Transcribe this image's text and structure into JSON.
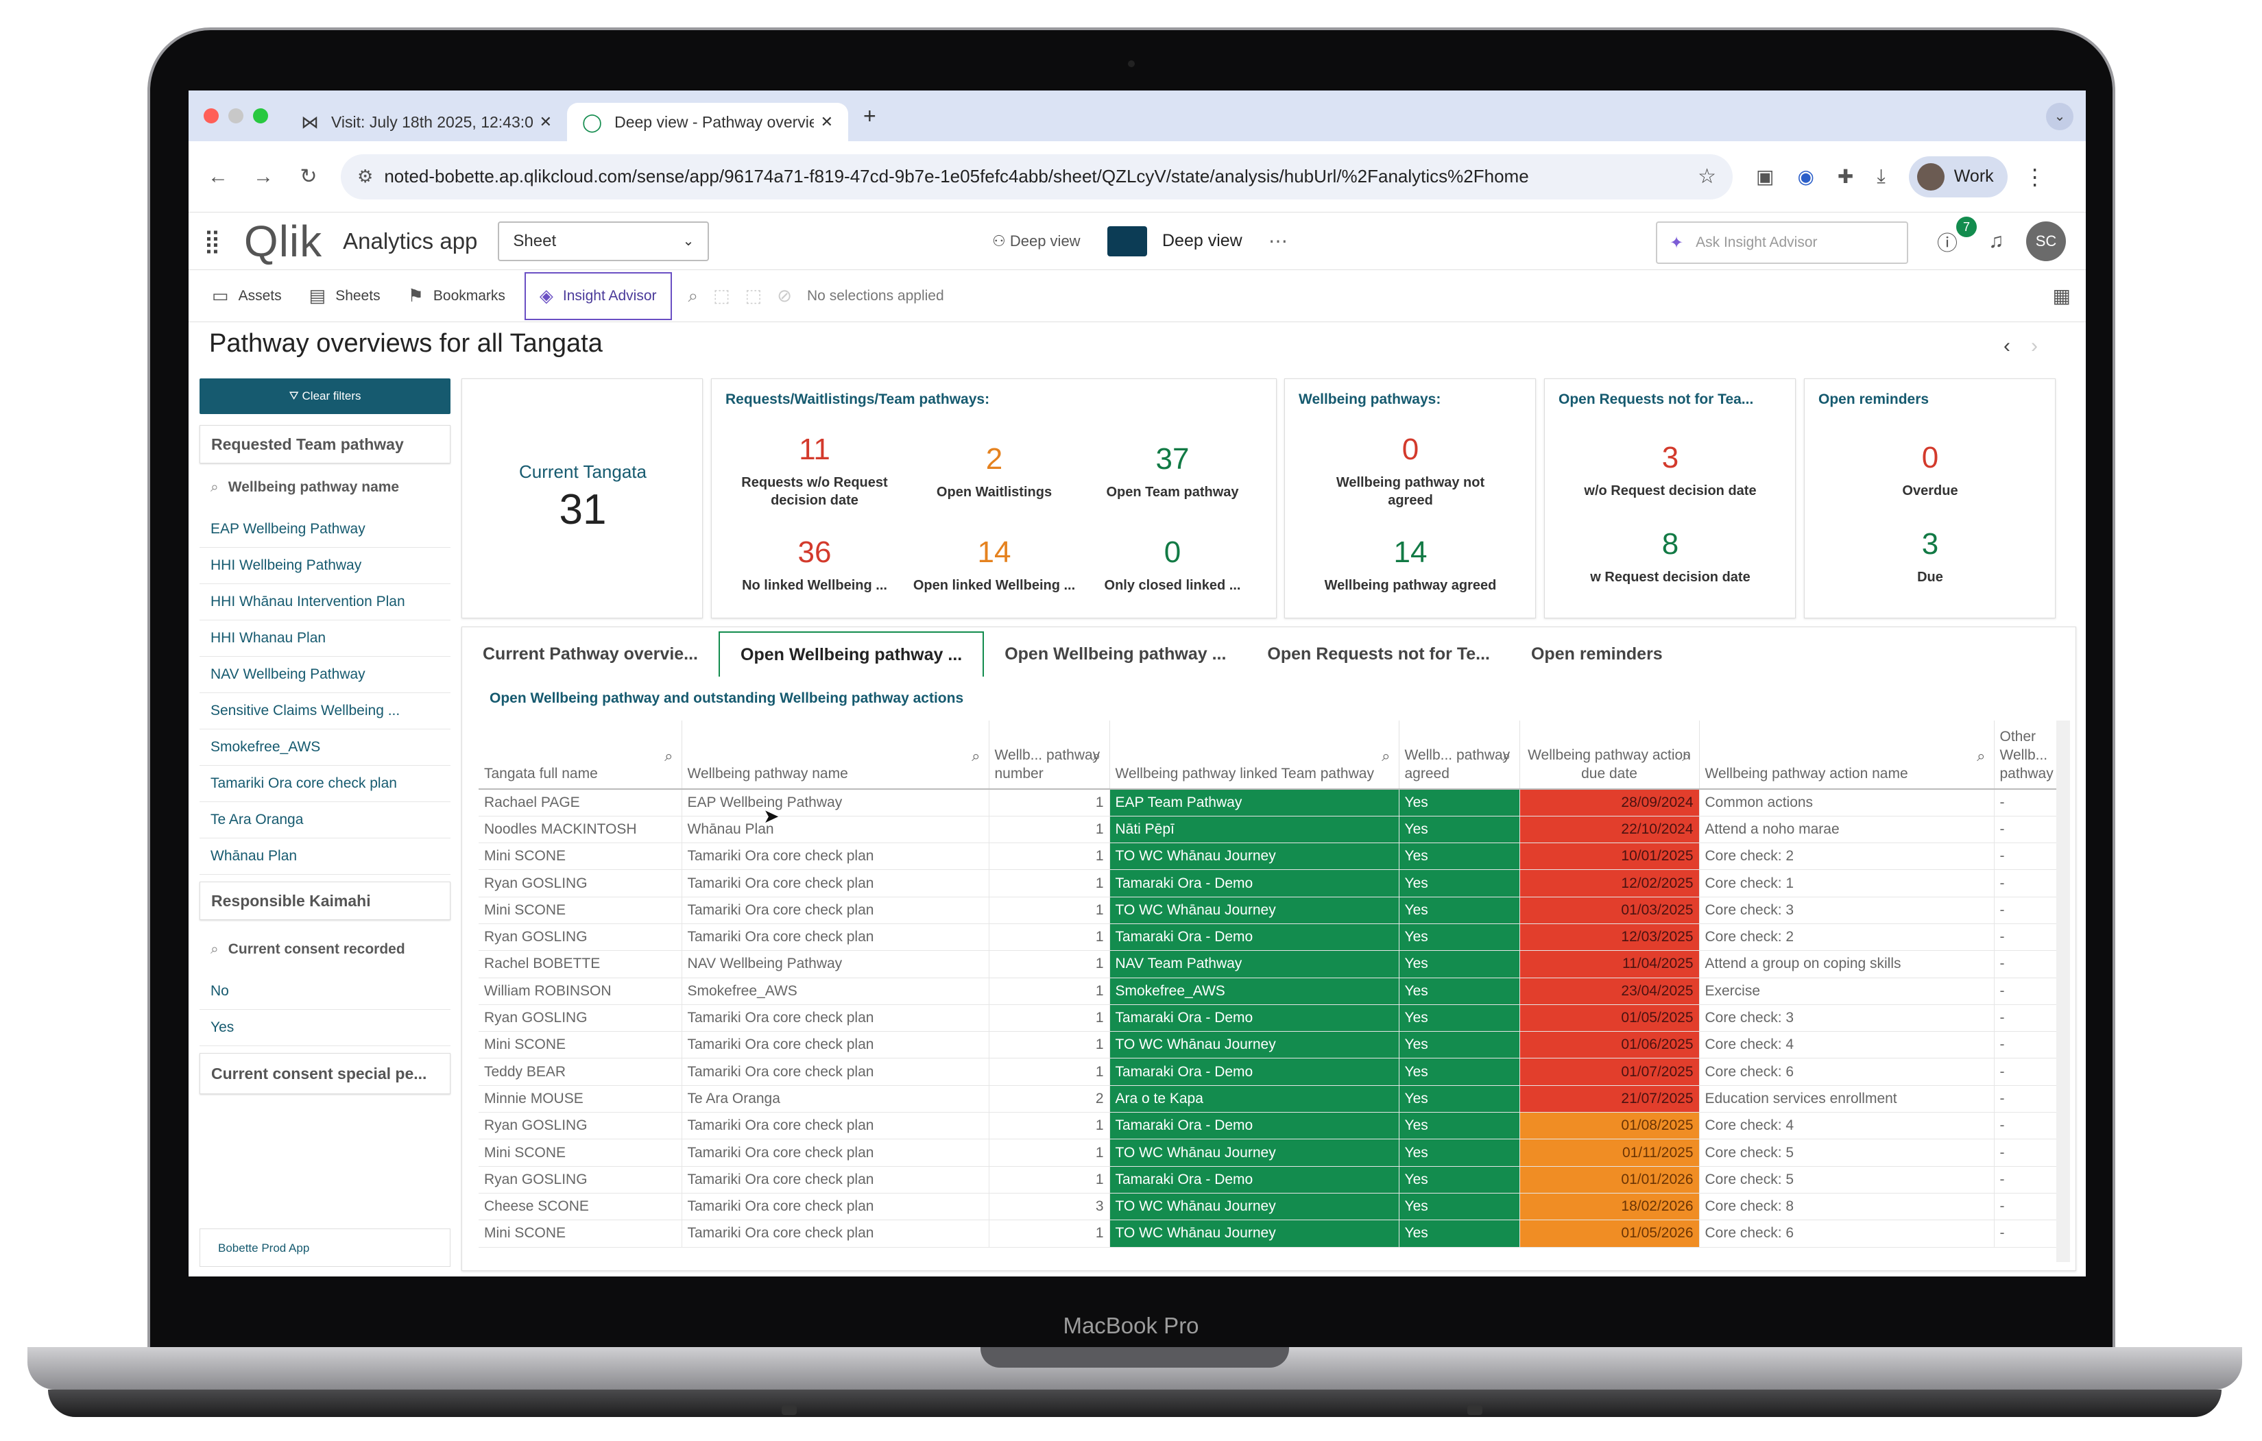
{
  "device_label": "MacBook Pro",
  "browser": {
    "tabs": [
      {
        "title": "Visit: July 18th 2025, 12:43:0",
        "active": false
      },
      {
        "title": "Deep view - Pathway overvie",
        "active": true
      }
    ],
    "url": "noted-bobette.ap.qlikcloud.com/sense/app/96174a71-f819-47cd-9b7e-1e05fefc4abb/sheet/QZLcyV/state/analysis/hubUrl/%2Fanalytics%2Fhome",
    "profile": "Work"
  },
  "header": {
    "logo": "Qlik",
    "app_label": "Analytics app",
    "sheet_dropdown": "Sheet",
    "deep_view_small": "Deep view",
    "deep_view": "Deep view",
    "ask_placeholder": "Ask Insight Advisor",
    "notif_count": "7",
    "avatar": "SC"
  },
  "toolbar": {
    "assets": "Assets",
    "sheets": "Sheets",
    "bookmarks": "Bookmarks",
    "insight_advisor": "Insight Advisor",
    "no_selections": "No selections applied"
  },
  "sheet_title": "Pathway overviews for all Tangata",
  "sidebar": {
    "clear_filters": "Clear filters",
    "pane1": "Requested Team pathway",
    "search1": "Wellbeing pathway name",
    "items1": [
      "EAP Wellbeing Pathway",
      "HHI Wellbeing Pathway",
      "HHI Whānau Intervention Plan",
      "HHI Whanau Plan",
      "NAV Wellbeing Pathway",
      "Sensitive Claims Wellbeing ...",
      "Smokefree_AWS",
      "Tamariki Ora core check plan",
      "Te Ara Oranga",
      "Whānau Plan"
    ],
    "pane2": "Responsible Kaimahi",
    "search2": "Current consent recorded",
    "items2": [
      "No",
      "Yes"
    ],
    "pane3": "Current consent special pe...",
    "app_name": "Bobette Prod App"
  },
  "kpis": {
    "current": {
      "label": "Current Tangata",
      "value": "31"
    },
    "requests": {
      "title": "Requests/Waitlistings/Team pathways:",
      "items": [
        {
          "value": "11",
          "label": "Requests w/o Request decision date"
        },
        {
          "value": "2",
          "label": "Open Waitlistings"
        },
        {
          "value": "37",
          "label": "Open Team pathway"
        },
        {
          "value": "36",
          "label": "No linked Wellbeing ..."
        },
        {
          "value": "14",
          "label": "Open linked Wellbeing ..."
        },
        {
          "value": "0",
          "label": "Only closed linked ..."
        }
      ]
    },
    "wellbeing": {
      "title": "Wellbeing pathways:",
      "items": [
        {
          "value": "0",
          "label": "Wellbeing pathway not agreed"
        },
        {
          "value": "14",
          "label": "Wellbeing pathway agreed"
        }
      ]
    },
    "open_requests": {
      "title": "Open Requests not for Tea...",
      "items": [
        {
          "value": "3",
          "label": "w/o Request decision date"
        },
        {
          "value": "8",
          "label": "w Request decision date"
        }
      ]
    },
    "reminders": {
      "title": "Open reminders",
      "items": [
        {
          "value": "0",
          "label": "Overdue"
        },
        {
          "value": "3",
          "label": "Due"
        }
      ]
    }
  },
  "container_tabs": [
    "Current Pathway overvie...",
    "Open Wellbeing pathway ...",
    "Open Wellbeing pathway ...",
    "Open Requests not for Te...",
    "Open reminders"
  ],
  "table": {
    "subtitle": "Open Wellbeing pathway and outstanding Wellbeing pathway actions",
    "columns": [
      "Tangata full name",
      "Wellbeing pathway name",
      "Wellb... pathway number",
      "Wellbeing pathway linked Team pathway",
      "Wellb... pathway agreed",
      "Wellbeing pathway action due date",
      "Wellbeing pathway action name",
      "Other Wellb... pathway"
    ],
    "rows": [
      [
        "Rachael PAGE",
        "EAP Wellbeing Pathway",
        "1",
        "EAP Team Pathway",
        "Yes",
        "28/09/2024",
        "Common actions",
        "-"
      ],
      [
        "Noodles MACKINTOSH",
        "Whānau Plan",
        "1",
        "Nāti Pēpī",
        "Yes",
        "22/10/2024",
        "Attend a noho marae",
        "-"
      ],
      [
        "Mini SCONE",
        "Tamariki Ora core check plan",
        "1",
        "TO WC Whānau Journey",
        "Yes",
        "10/01/2025",
        "Core check: 2",
        "-"
      ],
      [
        "Ryan GOSLING",
        "Tamariki Ora core check plan",
        "1",
        "Tamaraki Ora - Demo",
        "Yes",
        "12/02/2025",
        "Core check: 1",
        "-"
      ],
      [
        "Mini SCONE",
        "Tamariki Ora core check plan",
        "1",
        "TO WC Whānau Journey",
        "Yes",
        "01/03/2025",
        "Core check: 3",
        "-"
      ],
      [
        "Ryan GOSLING",
        "Tamariki Ora core check plan",
        "1",
        "Tamaraki Ora - Demo",
        "Yes",
        "12/03/2025",
        "Core check: 2",
        "-"
      ],
      [
        "Rachel BOBETTE",
        "NAV Wellbeing Pathway",
        "1",
        "NAV Team Pathway",
        "Yes",
        "11/04/2025",
        "Attend a group on coping skills",
        "-"
      ],
      [
        "William ROBINSON",
        "Smokefree_AWS",
        "1",
        "Smokefree_AWS",
        "Yes",
        "23/04/2025",
        "Exercise",
        "-"
      ],
      [
        "Ryan GOSLING",
        "Tamariki Ora core check plan",
        "1",
        "Tamaraki Ora - Demo",
        "Yes",
        "01/05/2025",
        "Core check: 3",
        "-"
      ],
      [
        "Mini SCONE",
        "Tamariki Ora core check plan",
        "1",
        "TO WC Whānau Journey",
        "Yes",
        "01/06/2025",
        "Core check: 4",
        "-"
      ],
      [
        "Teddy BEAR",
        "Tamariki Ora core check plan",
        "1",
        "Tamaraki Ora - Demo",
        "Yes",
        "01/07/2025",
        "Core check: 6",
        "-"
      ],
      [
        "Minnie MOUSE",
        "Te Ara Oranga",
        "2",
        "Ara o te Kapa",
        "Yes",
        "21/07/2025",
        "Education services enrollment",
        "-"
      ],
      [
        "Ryan GOSLING",
        "Tamariki Ora core check plan",
        "1",
        "Tamaraki Ora - Demo",
        "Yes",
        "01/08/2025",
        "Core check: 4",
        "-"
      ],
      [
        "Mini SCONE",
        "Tamariki Ora core check plan",
        "1",
        "TO WC Whānau Journey",
        "Yes",
        "01/11/2025",
        "Core check: 5",
        "-"
      ],
      [
        "Ryan GOSLING",
        "Tamariki Ora core check plan",
        "1",
        "Tamaraki Ora - Demo",
        "Yes",
        "01/01/2026",
        "Core check: 5",
        "-"
      ],
      [
        "Cheese SCONE",
        "Tamariki Ora core check plan",
        "3",
        "TO WC Whānau Journey",
        "Yes",
        "18/02/2026",
        "Core check: 8",
        "-"
      ],
      [
        "Mini SCONE",
        "Tamariki Ora core check plan",
        "1",
        "TO WC Whānau Journey",
        "Yes",
        "01/05/2026",
        "Core check: 6",
        "-"
      ]
    ],
    "due_status": [
      "red",
      "red",
      "red",
      "red",
      "red",
      "red",
      "red",
      "red",
      "red",
      "red",
      "red",
      "red",
      "orange",
      "orange",
      "orange",
      "orange",
      "orange"
    ]
  },
  "colors": {
    "accent": "#138c4e",
    "teal": "#165a6f",
    "red": "#e23e2c",
    "orange": "#f08d24"
  }
}
